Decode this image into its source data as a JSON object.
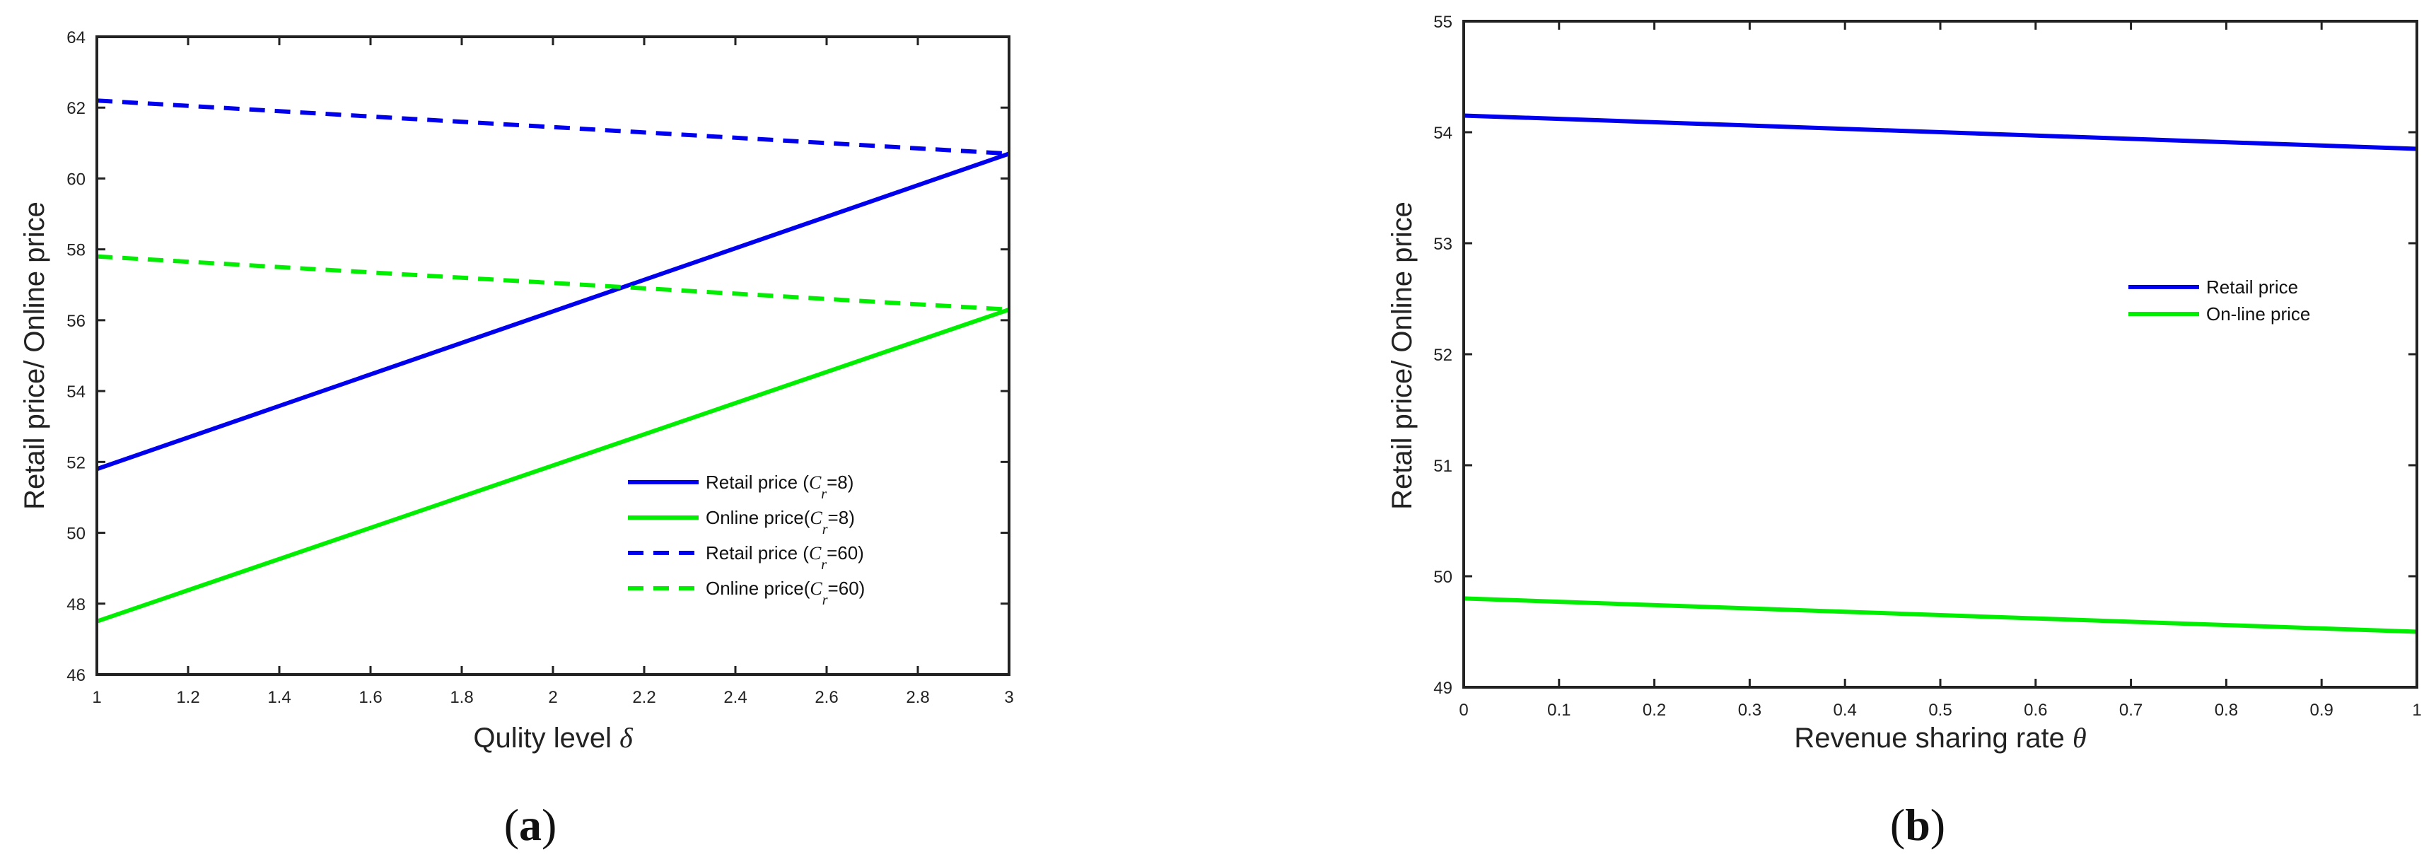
{
  "chart_data": [
    {
      "type": "line",
      "caption": "(a)",
      "xlabel": "Qulity level",
      "xlabel_symbol": "δ",
      "ylabel": "Retail price/ Online price",
      "xlim": [
        1,
        3
      ],
      "ylim": [
        46,
        64
      ],
      "xticks": [
        1,
        1.2,
        1.4,
        1.6,
        1.8,
        2,
        2.2,
        2.4,
        2.6,
        2.8,
        3
      ],
      "xtick_labels": [
        "1",
        "1.2",
        "1.4",
        "1.6",
        "1.8",
        "2",
        "2.2",
        "2.4",
        "2.6",
        "2.8",
        "3"
      ],
      "yticks": [
        46,
        48,
        50,
        52,
        54,
        56,
        58,
        60,
        62,
        64
      ],
      "ytick_labels": [
        "46",
        "48",
        "50",
        "52",
        "54",
        "56",
        "58",
        "60",
        "62",
        "64"
      ],
      "legend_position": "lower-right",
      "series": [
        {
          "name": "Retail price (Cr=8)",
          "legend_pre": "Retail price (",
          "legend_sym": "C",
          "legend_sub": "r",
          "legend_post": "=8)",
          "color": "#0000ee",
          "dash": "solid",
          "x": [
            1,
            3
          ],
          "y": [
            51.8,
            60.7
          ]
        },
        {
          "name": "Online price(Cr=8)",
          "legend_pre": "Online price(",
          "legend_sym": "C",
          "legend_sub": "r",
          "legend_post": "=8)",
          "color": "#00ee00",
          "dash": "solid",
          "x": [
            1,
            3
          ],
          "y": [
            47.5,
            56.3
          ]
        },
        {
          "name": "Retail price (Cr=60)",
          "legend_pre": "Retail price (",
          "legend_sym": "C",
          "legend_sub": "r",
          "legend_post": "=60)",
          "color": "#0000ee",
          "dash": "dashed",
          "x": [
            1,
            3
          ],
          "y": [
            62.2,
            60.7
          ]
        },
        {
          "name": "Online price(Cr=60)",
          "legend_pre": "Online price(",
          "legend_sym": "C",
          "legend_sub": "r",
          "legend_post": "=60)",
          "color": "#00ee00",
          "dash": "dashed",
          "x": [
            1,
            3
          ],
          "y": [
            57.8,
            56.3
          ]
        }
      ]
    },
    {
      "type": "line",
      "caption": "(b)",
      "xlabel": "Revenue sharing rate",
      "xlabel_symbol": "θ",
      "ylabel": "Retail price/ Online price",
      "xlim": [
        0,
        1
      ],
      "ylim": [
        49,
        55
      ],
      "xticks": [
        0,
        0.1,
        0.2,
        0.3,
        0.4,
        0.5,
        0.6,
        0.7,
        0.8,
        0.9,
        1
      ],
      "xtick_labels": [
        "0",
        "0.1",
        "0.2",
        "0.3",
        "0.4",
        "0.5",
        "0.6",
        "0.7",
        "0.8",
        "0.9",
        "1"
      ],
      "yticks": [
        49,
        50,
        51,
        52,
        53,
        54,
        55
      ],
      "ytick_labels": [
        "49",
        "50",
        "51",
        "52",
        "53",
        "54",
        "55"
      ],
      "legend_position": "right",
      "series": [
        {
          "name": "Retail price",
          "legend_pre": "Retail price",
          "color": "#0000ee",
          "dash": "solid",
          "x": [
            0,
            1
          ],
          "y": [
            54.15,
            53.85
          ]
        },
        {
          "name": "On-line price",
          "legend_pre": "On-line price",
          "color": "#00ee00",
          "dash": "solid",
          "x": [
            0,
            1
          ],
          "y": [
            49.8,
            49.5
          ]
        }
      ]
    }
  ]
}
